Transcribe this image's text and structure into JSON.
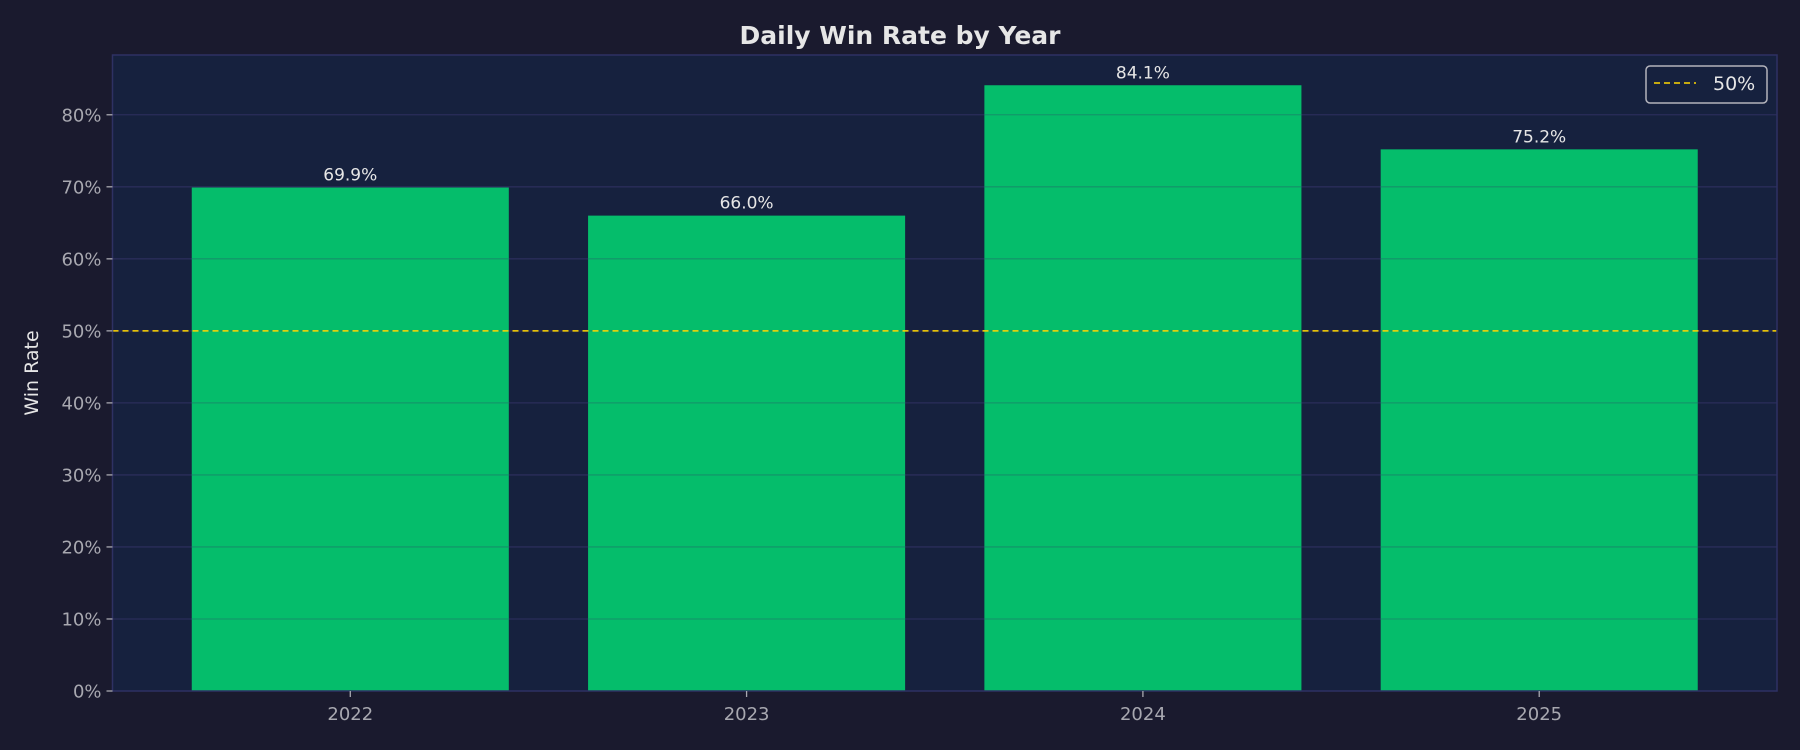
{
  "chart_data": {
    "type": "bar",
    "title": "Daily Win Rate by Year",
    "xlabel": "",
    "ylabel": "Win Rate",
    "categories": [
      "2022",
      "2023",
      "2024",
      "2025"
    ],
    "values": [
      69.9,
      66.0,
      84.1,
      75.2
    ],
    "data_labels": [
      "69.9%",
      "66.0%",
      "84.1%",
      "75.2%"
    ],
    "ylim": [
      0,
      88.3
    ],
    "yticks": [
      0,
      10,
      20,
      30,
      40,
      50,
      60,
      70,
      80
    ],
    "ytick_labels": [
      "0%",
      "10%",
      "20%",
      "30%",
      "40%",
      "50%",
      "60%",
      "70%",
      "80%"
    ],
    "reference_line": {
      "value": 50,
      "label": "50%",
      "style": "dashed",
      "color": "#ffd700"
    },
    "legend": {
      "entries": [
        "50%"
      ],
      "placement": "top-right"
    },
    "grid": true,
    "colors": {
      "bar": "#05bd6b",
      "background": "#1a1a2e",
      "plot_background": "#16213e",
      "grid": "#2a2d5a"
    }
  }
}
